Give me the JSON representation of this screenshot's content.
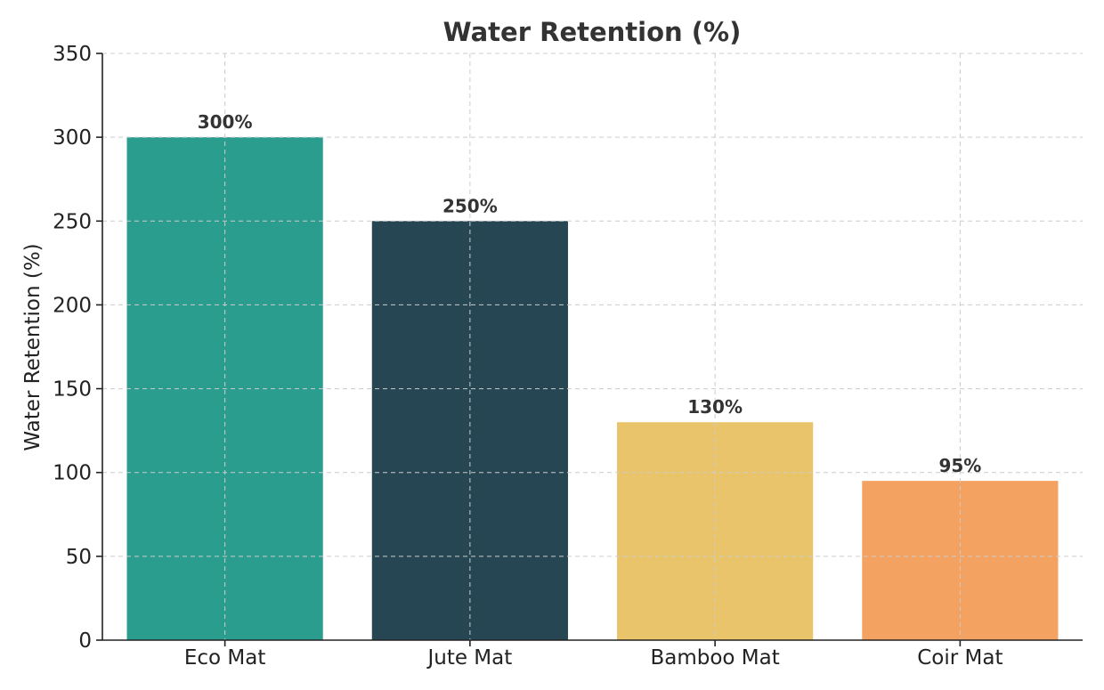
{
  "chart_data": {
    "type": "bar",
    "title": "Water Retention (%)",
    "xlabel": "",
    "ylabel": "Water Retention (%)",
    "categories": [
      "Eco Mat",
      "Jute Mat",
      "Bamboo Mat",
      "Coir Mat"
    ],
    "values": [
      300,
      250,
      130,
      95
    ],
    "value_labels": [
      "300%",
      "250%",
      "130%",
      "95%"
    ],
    "colors": [
      "#2a9d8f",
      "#264653",
      "#e9c46a",
      "#f4a261"
    ],
    "ylim": [
      0,
      350
    ],
    "yticks": [
      0,
      50,
      100,
      150,
      200,
      250,
      300,
      350
    ],
    "grid": true,
    "legend": "none"
  }
}
